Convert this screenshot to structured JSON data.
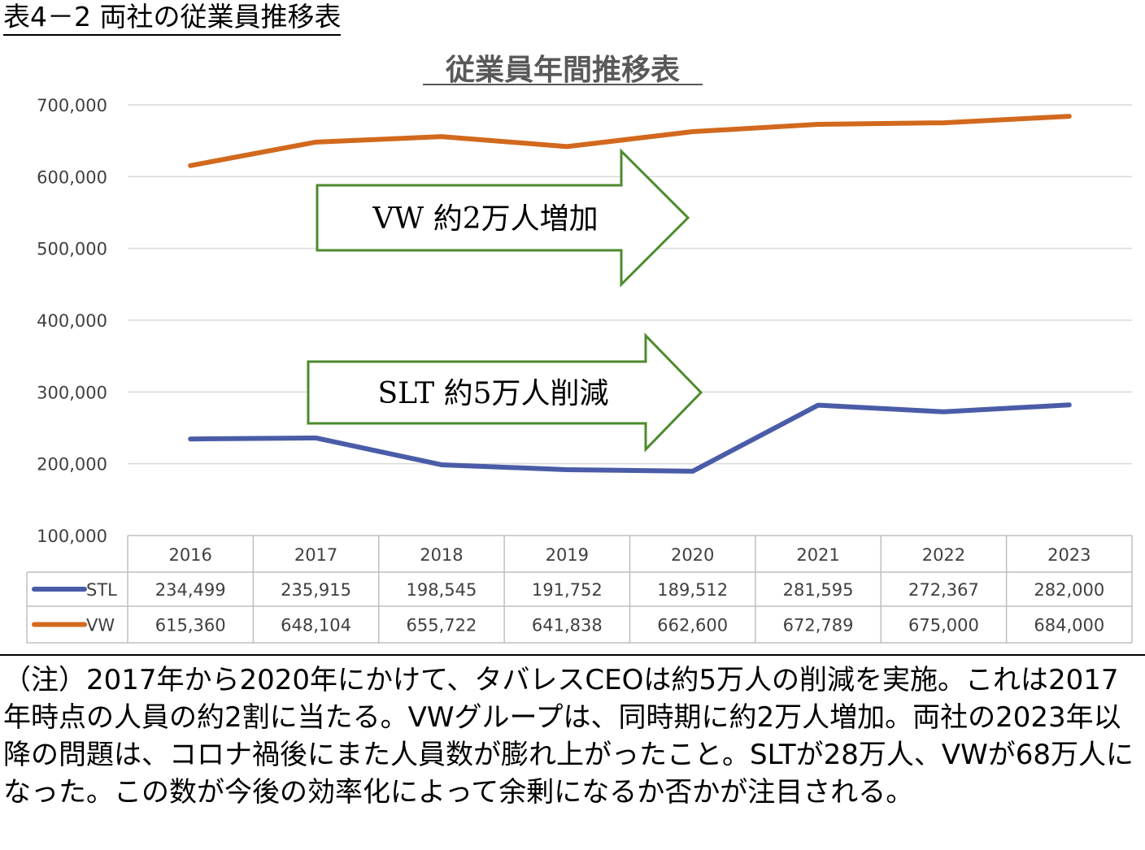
{
  "header": {
    "title": "表4－2 両社の従業員推移表"
  },
  "chart_data": {
    "type": "line",
    "title": "従業員年間推移表",
    "categories": [
      "2016",
      "2017",
      "2018",
      "2019",
      "2020",
      "2021",
      "2022",
      "2023"
    ],
    "y_ticks": [
      "700,000",
      "600,000",
      "500,000",
      "400,000",
      "300,000",
      "200,000",
      "100,000"
    ],
    "ylim": [
      100000,
      700000
    ],
    "grid": true,
    "series": [
      {
        "name": "STL",
        "color": "#4a5ca8",
        "values": [
          234499,
          235915,
          198545,
          191752,
          189512,
          281595,
          272367,
          282000
        ],
        "labels": [
          "234,499",
          "235,915",
          "198,545",
          "191,752",
          "189,512",
          "281,595",
          "272,367",
          "282,000"
        ]
      },
      {
        "name": "VW",
        "color": "#d2691e",
        "values": [
          615360,
          648104,
          655722,
          641838,
          662600,
          672789,
          675000,
          684000
        ],
        "labels": [
          "615,360",
          "648,104",
          "655,722",
          "641,838",
          "662,600",
          "672,789",
          "675,000",
          "684,000"
        ]
      }
    ],
    "annotations": [
      {
        "text": "VW 約2万人増加",
        "color": "#4e8a2e"
      },
      {
        "text": "SLT 約5万人削減",
        "color": "#4e8a2e"
      }
    ]
  },
  "note": "（注）2017年から2020年にかけて、タバレスCEOは約5万人の削減を実施。これは2017年時点の人員の約2割に当たる。VWグループは、同時期に約2万人増加。両社の2023年以降の問題は、コロナ禍後にまた人員数が膨れ上がったこと。SLTが28万人、VWが68万人になった。この数が今後の効率化によって余剰になるか否かが注目される。"
}
